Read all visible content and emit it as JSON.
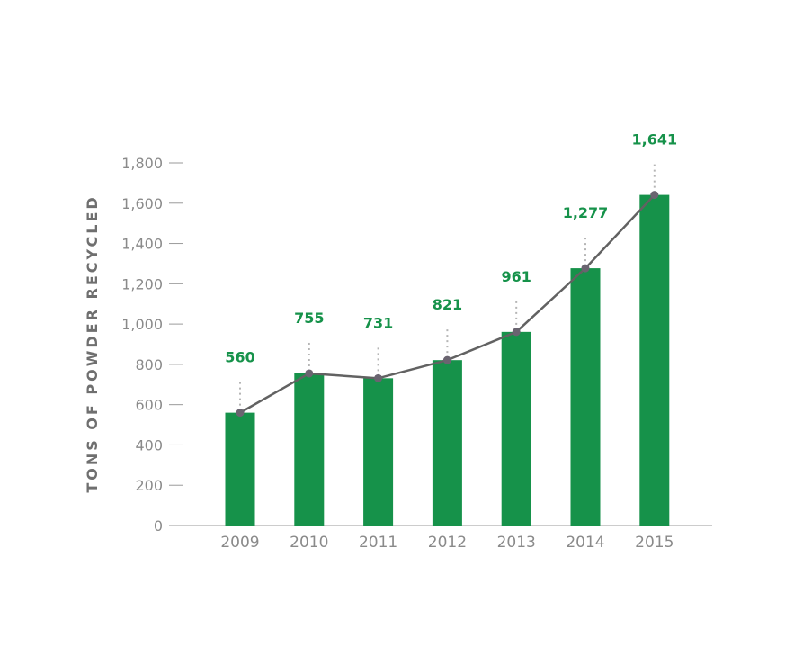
{
  "chart_data": {
    "type": "bar",
    "title": "",
    "xlabel": "",
    "ylabel": "TONS OF POWDER RECYCLED",
    "categories": [
      "2009",
      "2010",
      "2011",
      "2012",
      "2013",
      "2014",
      "2015"
    ],
    "series": [
      {
        "type": "bar",
        "values": [
          560,
          755,
          731,
          821,
          961,
          1277,
          1641
        ]
      },
      {
        "type": "line",
        "values": [
          560,
          755,
          731,
          821,
          961,
          1277,
          1641
        ]
      }
    ],
    "data_labels": [
      "560",
      "755",
      "731",
      "821",
      "961",
      "1,277",
      "1,641"
    ],
    "ylim": [
      0,
      1800
    ],
    "yticks": [
      0,
      200,
      400,
      600,
      800,
      1000,
      1200,
      1400,
      1600,
      1800
    ],
    "ytick_labels": [
      "0",
      "200",
      "400",
      "600",
      "800",
      "1,000",
      "1,200",
      "1,400",
      "1,600",
      "1,800"
    ],
    "grid": false,
    "legend": "none",
    "colors": {
      "bar": "#16924a",
      "line": "#626262",
      "marker": "#6a6470",
      "data_label": "#16924a",
      "connector": "#b5b5b5",
      "axis": "#9a9a9a",
      "tick_text": "#8a8a8a"
    }
  }
}
